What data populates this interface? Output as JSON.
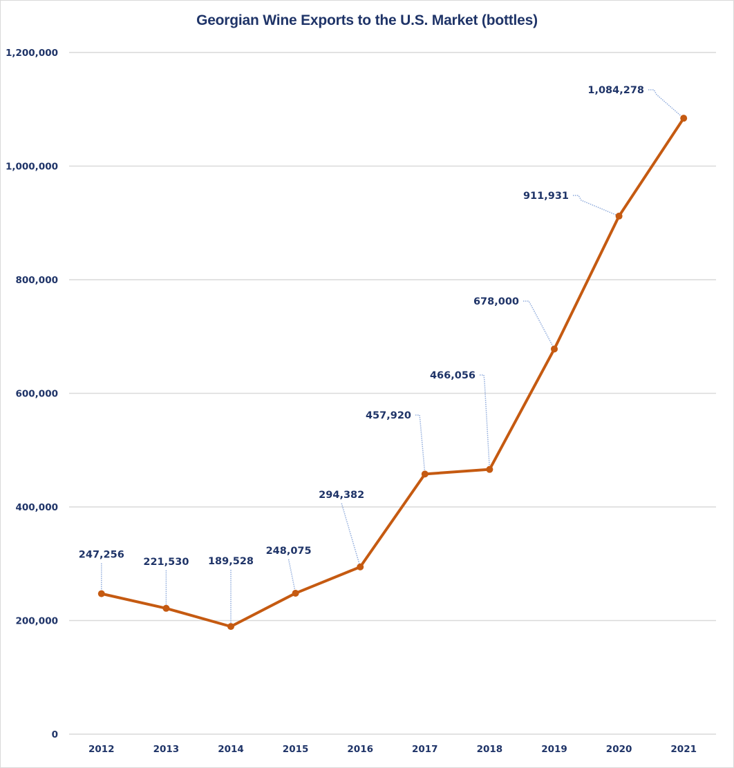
{
  "chart_data": {
    "type": "line",
    "title": "Georgian Wine Exports to the U.S. Market (bottles)",
    "xlabel": "",
    "ylabel": "",
    "categories": [
      "2012",
      "2013",
      "2014",
      "2015",
      "2016",
      "2017",
      "2018",
      "2019",
      "2020",
      "2021"
    ],
    "series": [
      {
        "name": "Bottles",
        "values": [
          247256,
          221530,
          189528,
          248075,
          294382,
          457920,
          466056,
          678000,
          911931,
          1084278
        ],
        "data_labels": [
          "247,256",
          "221,530",
          "189,528",
          "248,075",
          "294,382",
          "457,920",
          "466,056",
          "678,000",
          "911,931",
          "1,084,278"
        ],
        "color": "#c55a11"
      }
    ],
    "ylim": [
      0,
      1200000
    ],
    "yticks": [
      0,
      200000,
      400000,
      600000,
      800000,
      1000000,
      1200000
    ],
    "ytick_labels": [
      "0",
      "200,000",
      "400,000",
      "600,000",
      "800,000",
      "1,000,000",
      "1,200,000"
    ],
    "grid": true,
    "legend": "none",
    "colors": {
      "title": "#1f3468",
      "gridline": "#d9d9d9",
      "leader_line": "#8eaadb"
    }
  }
}
